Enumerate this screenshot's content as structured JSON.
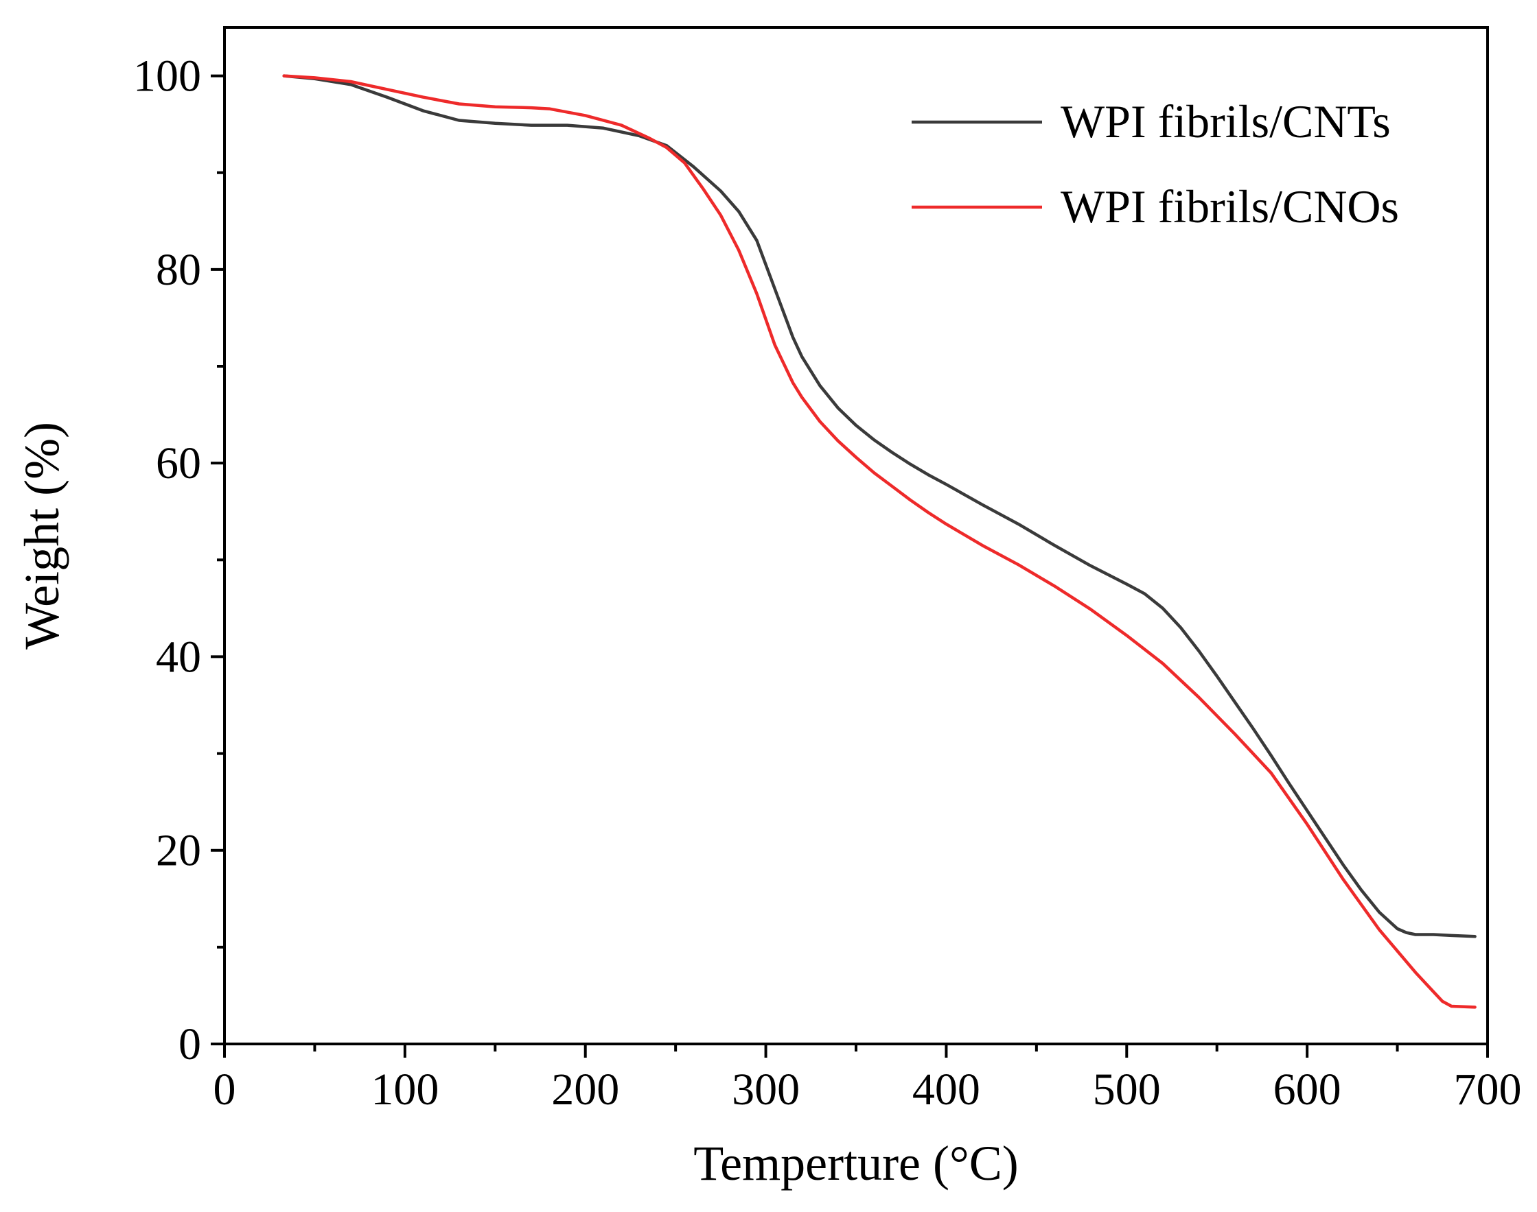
{
  "chart_data": {
    "type": "line",
    "title": "",
    "xlabel": "Temperture (°C)",
    "ylabel": "Weight (%)",
    "xlim": [
      0,
      700
    ],
    "ylim": [
      0,
      105
    ],
    "xticks": [
      0,
      100,
      200,
      300,
      400,
      500,
      600,
      700
    ],
    "yticks": [
      0,
      20,
      40,
      60,
      80,
      100
    ],
    "grid": false,
    "legend_position": "top-right",
    "series": [
      {
        "name": "WPI fibrils/CNTs",
        "color": "#3a3a3a",
        "x": [
          33,
          50,
          70,
          90,
          110,
          130,
          150,
          170,
          190,
          210,
          230,
          245,
          260,
          275,
          285,
          295,
          305,
          315,
          320,
          330,
          340,
          350,
          360,
          370,
          380,
          390,
          400,
          420,
          440,
          460,
          480,
          500,
          510,
          520,
          530,
          540,
          550,
          560,
          570,
          580,
          590,
          600,
          610,
          620,
          630,
          640,
          650,
          655,
          660,
          670,
          680,
          693
        ],
        "y": [
          100,
          99.7,
          99.1,
          97.8,
          96.4,
          95.4,
          95.1,
          94.9,
          94.9,
          94.6,
          93.8,
          92.8,
          90.6,
          88.1,
          86.0,
          83.0,
          78.0,
          73.0,
          71.0,
          68.0,
          65.7,
          63.9,
          62.4,
          61.1,
          59.9,
          58.8,
          57.8,
          55.7,
          53.7,
          51.5,
          49.4,
          47.5,
          46.5,
          45.0,
          43.0,
          40.6,
          38.0,
          35.3,
          32.6,
          29.8,
          26.9,
          24.1,
          21.3,
          18.5,
          15.9,
          13.6,
          11.9,
          11.5,
          11.3,
          11.3,
          11.2,
          11.1
        ]
      },
      {
        "name": "WPI fibrils/CNOs",
        "color": "#ee2a2a",
        "x": [
          33,
          50,
          70,
          90,
          110,
          130,
          150,
          170,
          180,
          200,
          220,
          235,
          245,
          255,
          265,
          275,
          285,
          295,
          305,
          315,
          320,
          330,
          340,
          350,
          360,
          370,
          380,
          390,
          400,
          420,
          440,
          460,
          480,
          500,
          520,
          540,
          560,
          580,
          600,
          620,
          640,
          650,
          660,
          670,
          675,
          680,
          693
        ],
        "y": [
          100,
          99.8,
          99.4,
          98.6,
          97.8,
          97.1,
          96.8,
          96.7,
          96.6,
          95.9,
          94.9,
          93.6,
          92.6,
          91.0,
          88.4,
          85.6,
          82.0,
          77.5,
          72.2,
          68.3,
          66.8,
          64.3,
          62.3,
          60.6,
          59.0,
          57.6,
          56.2,
          54.9,
          53.7,
          51.5,
          49.5,
          47.3,
          44.9,
          42.2,
          39.3,
          35.8,
          32.0,
          28.0,
          22.7,
          17.0,
          11.8,
          9.6,
          7.4,
          5.4,
          4.4,
          3.9,
          3.8
        ]
      }
    ]
  }
}
